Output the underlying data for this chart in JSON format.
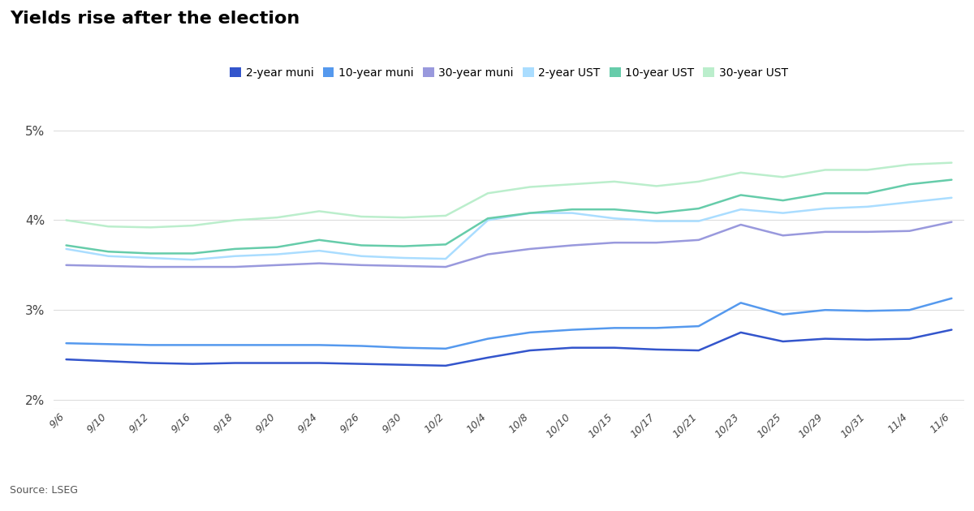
{
  "title": "Yields rise after the election",
  "source": "Source: LSEG",
  "x_labels": [
    "9/6",
    "9/10",
    "9/12",
    "9/16",
    "9/18",
    "9/20",
    "9/24",
    "9/26",
    "9/30",
    "10/2",
    "10/4",
    "10/8",
    "10/10",
    "10/15",
    "10/17",
    "10/21",
    "10/23",
    "10/25",
    "10/29",
    "10/31",
    "11/4",
    "11/6"
  ],
  "yticks": [
    0.02,
    0.03,
    0.04,
    0.05
  ],
  "ylim": [
    0.019,
    0.052
  ],
  "series": [
    {
      "key": "2yr_muni",
      "label": "2-year muni",
      "color": "#3355cc",
      "values": [
        0.0245,
        0.0243,
        0.0241,
        0.024,
        0.0241,
        0.0241,
        0.0241,
        0.024,
        0.0239,
        0.0238,
        0.0247,
        0.0255,
        0.0258,
        0.0258,
        0.0256,
        0.0255,
        0.0275,
        0.0265,
        0.0268,
        0.0267,
        0.0268,
        0.0278
      ]
    },
    {
      "key": "10yr_muni",
      "label": "10-year muni",
      "color": "#5599ee",
      "values": [
        0.0263,
        0.0262,
        0.0261,
        0.0261,
        0.0261,
        0.0261,
        0.0261,
        0.026,
        0.0258,
        0.0257,
        0.0268,
        0.0275,
        0.0278,
        0.028,
        0.028,
        0.0282,
        0.0308,
        0.0295,
        0.03,
        0.0299,
        0.03,
        0.0313
      ]
    },
    {
      "key": "30yr_muni",
      "label": "30-year muni",
      "color": "#9999dd",
      "values": [
        0.035,
        0.0349,
        0.0348,
        0.0348,
        0.0348,
        0.035,
        0.0352,
        0.035,
        0.0349,
        0.0348,
        0.0362,
        0.0368,
        0.0372,
        0.0375,
        0.0375,
        0.0378,
        0.0395,
        0.0383,
        0.0387,
        0.0387,
        0.0388,
        0.0398
      ]
    },
    {
      "key": "2yr_ust",
      "label": "2-year UST",
      "color": "#aaddff",
      "values": [
        0.0368,
        0.036,
        0.0358,
        0.0356,
        0.036,
        0.0362,
        0.0366,
        0.036,
        0.0358,
        0.0357,
        0.04,
        0.0408,
        0.0408,
        0.0402,
        0.0399,
        0.0399,
        0.0412,
        0.0408,
        0.0413,
        0.0415,
        0.042,
        0.0425
      ]
    },
    {
      "key": "10yr_ust",
      "label": "10-year UST",
      "color": "#66ccaa",
      "values": [
        0.0372,
        0.0365,
        0.0363,
        0.0363,
        0.0368,
        0.037,
        0.0378,
        0.0372,
        0.0371,
        0.0373,
        0.0402,
        0.0408,
        0.0412,
        0.0412,
        0.0408,
        0.0413,
        0.0428,
        0.0422,
        0.043,
        0.043,
        0.044,
        0.0445
      ]
    },
    {
      "key": "30yr_ust",
      "label": "30-year UST",
      "color": "#bbeecc",
      "values": [
        0.04,
        0.0393,
        0.0392,
        0.0394,
        0.04,
        0.0403,
        0.041,
        0.0404,
        0.0403,
        0.0405,
        0.043,
        0.0437,
        0.044,
        0.0443,
        0.0438,
        0.0443,
        0.0453,
        0.0448,
        0.0456,
        0.0456,
        0.0462,
        0.0464
      ]
    }
  ]
}
